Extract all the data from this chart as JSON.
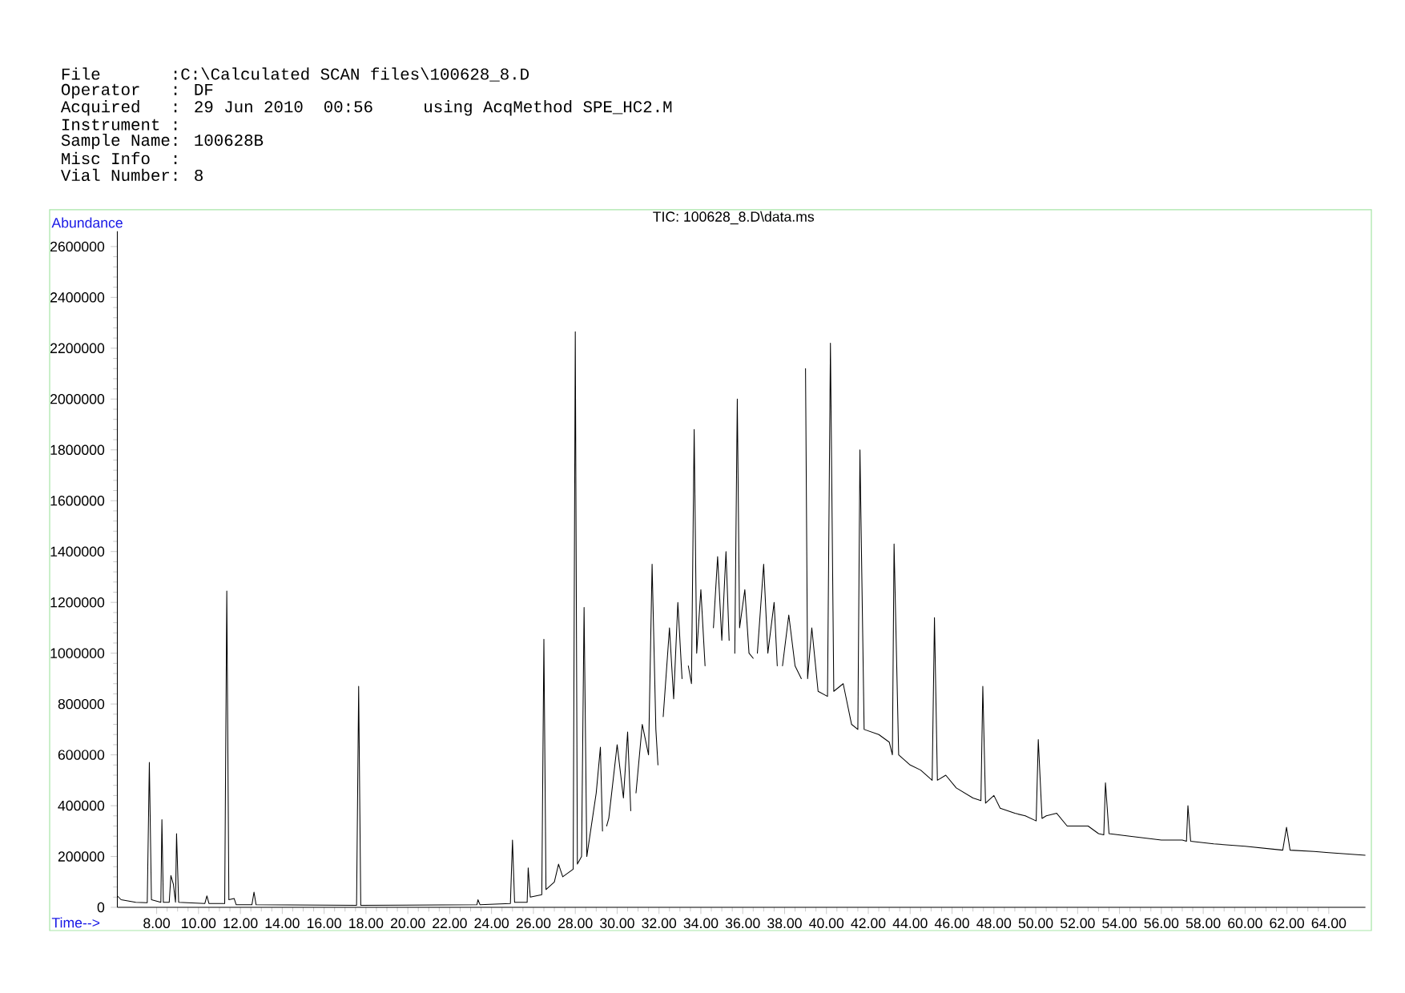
{
  "chart_data": {
    "type": "line",
    "title": "TIC: 100628_8.D\\data.ms",
    "xlabel": "Time-->",
    "ylabel": "Abundance",
    "annotations": [
      "File       :C:\\Calculated SCAN files\\100628_8.D",
      "Operator   : DF",
      "Acquired   : 29 Jun 2010  00:56     using AcqMethod SPE_HC2.M",
      "Instrument :",
      "Sample Name: 100628B",
      "Misc Info  :",
      "Vial Number: 8"
    ],
    "xlim": [
      6.12,
      65.75
    ],
    "ylim": [
      0,
      2660000
    ],
    "xticks": [
      {
        "value": 8,
        "label": "8.00"
      },
      {
        "value": 10,
        "label": "10.00"
      },
      {
        "value": 12,
        "label": "12.00"
      },
      {
        "value": 14,
        "label": "14.00"
      },
      {
        "value": 16,
        "label": "16.00"
      },
      {
        "value": 18,
        "label": "18.00"
      },
      {
        "value": 20,
        "label": "20.00"
      },
      {
        "value": 22,
        "label": "22.00"
      },
      {
        "value": 24,
        "label": "24.00"
      },
      {
        "value": 26,
        "label": "26.00"
      },
      {
        "value": 28,
        "label": "28.00"
      },
      {
        "value": 30,
        "label": "30.00"
      },
      {
        "value": 32,
        "label": "32.00"
      },
      {
        "value": 34,
        "label": "34.00"
      },
      {
        "value": 36,
        "label": "36.00"
      },
      {
        "value": 38,
        "label": "38.00"
      },
      {
        "value": 40,
        "label": "40.00"
      },
      {
        "value": 42,
        "label": "42.00"
      },
      {
        "value": 44,
        "label": "44.00"
      },
      {
        "value": 46,
        "label": "46.00"
      },
      {
        "value": 48,
        "label": "48.00"
      },
      {
        "value": 50,
        "label": "50.00"
      },
      {
        "value": 52,
        "label": "52.00"
      },
      {
        "value": 54,
        "label": "54.00"
      },
      {
        "value": 56,
        "label": "56.00"
      },
      {
        "value": 58,
        "label": "58.00"
      },
      {
        "value": 60,
        "label": "60.00"
      },
      {
        "value": 62,
        "label": "62.00"
      },
      {
        "value": 64,
        "label": "64.00"
      }
    ],
    "yticks": [
      0,
      200000,
      400000,
      600000,
      800000,
      1000000,
      1200000,
      1400000,
      1600000,
      1800000,
      2000000,
      2200000,
      2400000,
      2600000
    ],
    "marker": "none",
    "line_style": "solid",
    "series": [
      {
        "color": "#000000",
        "x": [
          6.12,
          6.3,
          7.0,
          7.55,
          7.65,
          7.75,
          8.2,
          8.25,
          8.32,
          8.6,
          8.68,
          8.8,
          8.9,
          8.95,
          9.05,
          10.3,
          10.4,
          10.5,
          11.25,
          11.35,
          11.45,
          11.7,
          11.8,
          12.55,
          12.65,
          12.75,
          17.55,
          17.65,
          17.75,
          23.3,
          23.35,
          23.45,
          24.9,
          25.0,
          25.1,
          25.7,
          25.75,
          25.85,
          26.4,
          26.5,
          26.6,
          27.0,
          27.2,
          27.4,
          27.9,
          28.0,
          28.1,
          28.3,
          28.42,
          28.55,
          29.0,
          29.2,
          29.3,
          29.4,
          29.5,
          29.6,
          30.0,
          30.3,
          30.5,
          30.65,
          30.77,
          30.9,
          31.2,
          31.5,
          31.67,
          31.85,
          31.95,
          32.06,
          32.2,
          32.5,
          32.7,
          32.9,
          33.1,
          33.26,
          33.4,
          33.55,
          33.68,
          33.8,
          34.0,
          34.2,
          34.41,
          34.6,
          34.8,
          35.0,
          35.2,
          35.35,
          35.53,
          35.62,
          35.74,
          35.85,
          36.1,
          36.3,
          36.5,
          36.6,
          36.7,
          37.0,
          37.2,
          37.5,
          37.65,
          37.75,
          37.9,
          38.2,
          38.5,
          38.8,
          38.9,
          39.0,
          39.1,
          39.3,
          39.6,
          40.05,
          40.19,
          40.35,
          40.8,
          41.2,
          41.5,
          41.6,
          41.8,
          42.5,
          43.0,
          43.15,
          43.23,
          43.45,
          44.0,
          44.5,
          45.05,
          45.16,
          45.3,
          45.7,
          46.2,
          47.0,
          47.38,
          47.47,
          47.6,
          48.0,
          48.3,
          49.0,
          49.5,
          50.02,
          50.12,
          50.3,
          50.5,
          51.0,
          51.5,
          52.5,
          53.0,
          53.25,
          53.33,
          53.5,
          54.5,
          56.0,
          57.0,
          57.2,
          57.27,
          57.4,
          58.5,
          60.0,
          61.8,
          61.98,
          62.15,
          63.3,
          64.0,
          65.75
        ],
        "values": [
          45000,
          30000,
          20000,
          18000,
          570000,
          30000,
          20000,
          345000,
          20000,
          20000,
          125000,
          90000,
          20000,
          290000,
          20000,
          15000,
          45000,
          15000,
          15000,
          1245000,
          30000,
          35000,
          10000,
          10000,
          60000,
          10000,
          8000,
          870000,
          8000,
          10000,
          30000,
          10000,
          15000,
          265000,
          20000,
          20000,
          155000,
          40000,
          50000,
          1055000,
          70000,
          100000,
          170000,
          120000,
          150000,
          2265000,
          170000,
          200000,
          1180000,
          200000,
          450000,
          630000,
          300000,
          null,
          320000,
          350000,
          640000,
          430000,
          690000,
          380000,
          null,
          450000,
          720000,
          600000,
          1350000,
          700000,
          560000,
          null,
          750000,
          1100000,
          820000,
          1200000,
          900000,
          null,
          950000,
          880000,
          1880000,
          1000000,
          1250000,
          950000,
          null,
          1100000,
          1380000,
          1050000,
          1400000,
          1050000,
          null,
          1000000,
          2000000,
          1100000,
          1250000,
          1000000,
          980000,
          null,
          1000000,
          1350000,
          1000000,
          1200000,
          950000,
          null,
          950000,
          1150000,
          950000,
          900000,
          null,
          2120000,
          900000,
          1100000,
          850000,
          830000,
          2220000,
          850000,
          880000,
          720000,
          700000,
          1800000,
          700000,
          680000,
          650000,
          600000,
          1430000,
          600000,
          560000,
          540000,
          500000,
          1140000,
          500000,
          520000,
          470000,
          430000,
          420000,
          870000,
          410000,
          440000,
          390000,
          370000,
          360000,
          340000,
          660000,
          350000,
          360000,
          370000,
          320000,
          320000,
          290000,
          285000,
          490000,
          290000,
          280000,
          265000,
          265000,
          260000,
          400000,
          260000,
          250000,
          240000,
          225000,
          315000,
          225000,
          220000,
          215000,
          205000
        ]
      }
    ]
  }
}
